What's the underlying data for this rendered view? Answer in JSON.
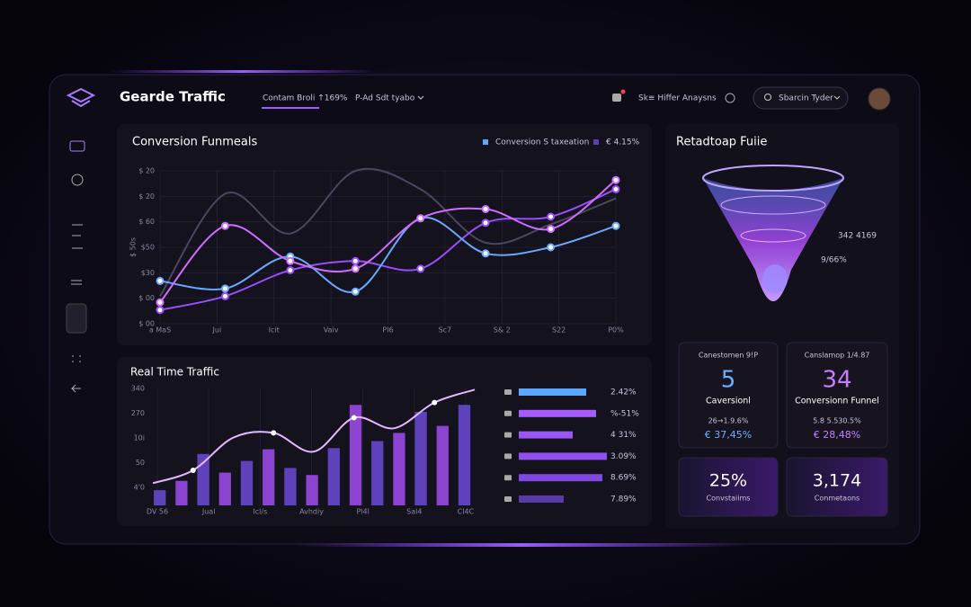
{
  "header": {
    "title": "Gearde Traffic",
    "tabs": [
      "Contam Broli ↑169%",
      "P-Ad Sdt tyabo"
    ],
    "menu": "Sk≡ Hiffer Anaysns",
    "search": "Sbarcin Tyder"
  },
  "conversion": {
    "title": "Conversion Funmeals",
    "legend": [
      {
        "name": "Conversion S taxeation",
        "color": "#5aa8ff"
      },
      {
        "name": "€ 4.15%",
        "color": "#5b3fb0"
      }
    ],
    "axis_label": "$ 50s",
    "y_labels": [
      "$ 20",
      "$ 20",
      "$ 60",
      "$50",
      "$30",
      "$ 00",
      "$ 00"
    ],
    "x_labels": [
      "a MaS",
      "Jui",
      "Icit",
      "Vaiv",
      "Pl6",
      "Sc7",
      "S& 2",
      "S22",
      "P0%"
    ],
    "ylim": [
      0,
      100
    ],
    "series": [
      {
        "color": "#4b4660",
        "values": [
          18,
          85,
          59,
          100,
          88,
          53,
          65,
          82
        ]
      },
      {
        "color": "#9a4dff",
        "values": [
          9,
          18,
          35,
          41,
          36,
          66,
          70,
          88
        ]
      },
      {
        "color": "#6aa8ff",
        "values": [
          28,
          23,
          44,
          21,
          69,
          46,
          50,
          64
        ]
      },
      {
        "color": "#d06cff",
        "values": [
          14,
          64,
          41,
          36,
          69,
          75,
          62,
          94
        ]
      }
    ]
  },
  "traffic": {
    "title": "Real Time Traffic",
    "y_labels": [
      "340",
      "270",
      "10i",
      "50",
      "4'0"
    ],
    "x_labels": [
      "DV 56",
      "Jual",
      "Icl/s",
      "Avhdiy",
      "Pl4l",
      "Sal4",
      "Cl4C"
    ],
    "ylim": [
      0,
      100
    ],
    "bar_colors": [
      "#6b4bd8",
      "#a04cf0"
    ],
    "bars": [
      13,
      21,
      44,
      28,
      38,
      48,
      32,
      26,
      49,
      86,
      55,
      62,
      80,
      68,
      86
    ],
    "line_color": "#e2b8ff",
    "line": [
      19,
      30,
      58,
      62,
      46,
      75,
      66,
      88,
      99
    ]
  },
  "ranking": [
    {
      "share": 75,
      "text": "2.42%",
      "color": "#5aa8ff"
    },
    {
      "share": 86,
      "text": "%-51%",
      "color": "#a45cff"
    },
    {
      "share": 60,
      "text": "4 31%",
      "color": "#9a55f5"
    },
    {
      "share": 98,
      "text": "3.09%",
      "color": "#9050ee"
    },
    {
      "share": 93,
      "text": "8.69%",
      "color": "#7f48e0"
    },
    {
      "share": 50,
      "text": "7.89%",
      "color": "#5a3aa8"
    }
  ],
  "funnel": {
    "title": "Retadtoap Fuiie",
    "labels": [
      "342 4169",
      "9/66%"
    ]
  },
  "cards": [
    {
      "caption": "Canestomen 9!P",
      "value": "5",
      "label": "Caversionl",
      "sub": "26→1.9.6%",
      "delta": "€ 37,45%",
      "color": "#6ab0ff"
    },
    {
      "caption": "Canslamop 1/4.87",
      "value": "34",
      "label": "Conversionn Funnel",
      "sub": "5.8 5.530.5%",
      "delta": "€ 28,48%",
      "color": "#c77dff"
    },
    {
      "value": "25%",
      "label": "Convstaiims"
    },
    {
      "value": "3,174",
      "label": "Conmetaons"
    }
  ]
}
